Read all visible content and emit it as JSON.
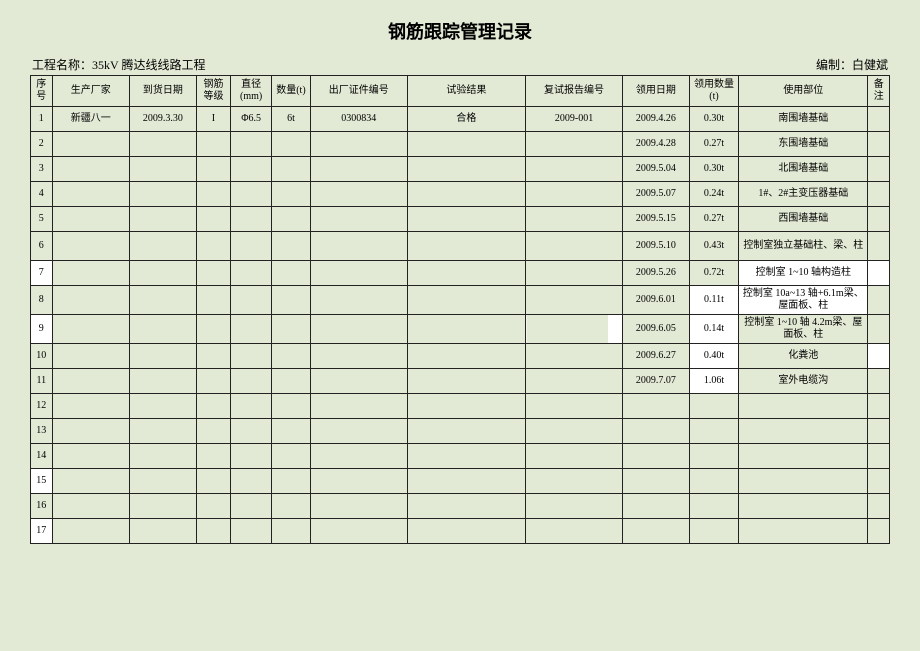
{
  "title": "钢筋跟踪管理记录",
  "meta": {
    "project_label": "工程名称：",
    "project_name": "35kV 腾达线线路工程",
    "compiler_label": "编制：",
    "compiler_name": "白健斌"
  },
  "columns": [
    "序号",
    "生产厂家",
    "到货日期",
    "钢筋等级",
    "直径(mm)",
    "数量(t)",
    "出厂证件编号",
    "试验结果",
    "复试报告编号",
    "领用日期",
    "领用数量(t)",
    "使用部位",
    "备注"
  ],
  "rows": [
    {
      "seq": "1",
      "mfr": "新疆八一",
      "arrive": "2009.3.30",
      "grade": "I",
      "dia": "Φ6.5",
      "qty": "6t",
      "cert": "0300834",
      "test": "合格",
      "report": "2009-001",
      "use_date": "2009.4.26",
      "use_qty": "0.30t",
      "part": "南围墙基础",
      "note": "",
      "white": []
    },
    {
      "seq": "2",
      "use_date": "2009.4.28",
      "use_qty": "0.27t",
      "part": "东围墙基础",
      "white": []
    },
    {
      "seq": "3",
      "use_date": "2009.5.04",
      "use_qty": "0.30t",
      "part": "北围墙基础",
      "white": []
    },
    {
      "seq": "4",
      "use_date": "2009.5.07",
      "use_qty": "0.24t",
      "part": "1#、2#主变压器基础",
      "white": []
    },
    {
      "seq": "5",
      "use_date": "2009.5.15",
      "use_qty": "0.27t",
      "part": "西围墙基础",
      "white": []
    },
    {
      "seq": "6",
      "use_date": "2009.5.10",
      "use_qty": "0.43t",
      "part": "控制室独立基础柱、梁、柱",
      "white": [],
      "tall": true
    },
    {
      "seq": "7",
      "use_date": "2009.5.26",
      "use_qty": "0.72t",
      "part": "控制室 1~10 轴构造柱",
      "white": [
        "seq",
        "part",
        "note"
      ]
    },
    {
      "seq": "8",
      "use_date": "2009.6.01",
      "use_qty": "0.11t",
      "part": "控制室 10a~13 轴+6.1m梁、屋面板、柱",
      "white": [
        "use_qty",
        "part"
      ],
      "tall": true
    },
    {
      "seq": "9",
      "use_date": "2009.6.05",
      "use_qty": "0.14t",
      "part": "控制室 1~10 轴 4.2m梁、屋面板、柱",
      "white": [
        "seq",
        "report_tail",
        "use_qty"
      ],
      "tall": true
    },
    {
      "seq": "10",
      "use_date": "2009.6.27",
      "use_qty": "0.40t",
      "part": "化粪池",
      "white": [
        "use_qty",
        "note"
      ]
    },
    {
      "seq": "11",
      "use_date": "2009.7.07",
      "use_qty": "1.06t",
      "part": "室外电缆沟",
      "white": [
        "use_qty"
      ]
    },
    {
      "seq": "12",
      "white": []
    },
    {
      "seq": "13",
      "white": []
    },
    {
      "seq": "14",
      "white": []
    },
    {
      "seq": "15",
      "white": [
        "seq"
      ]
    },
    {
      "seq": "16",
      "white": []
    },
    {
      "seq": "17",
      "white": [
        "seq"
      ]
    }
  ],
  "colors": {
    "bg": "#e2ead5",
    "border": "#222222",
    "white": "#ffffff"
  }
}
